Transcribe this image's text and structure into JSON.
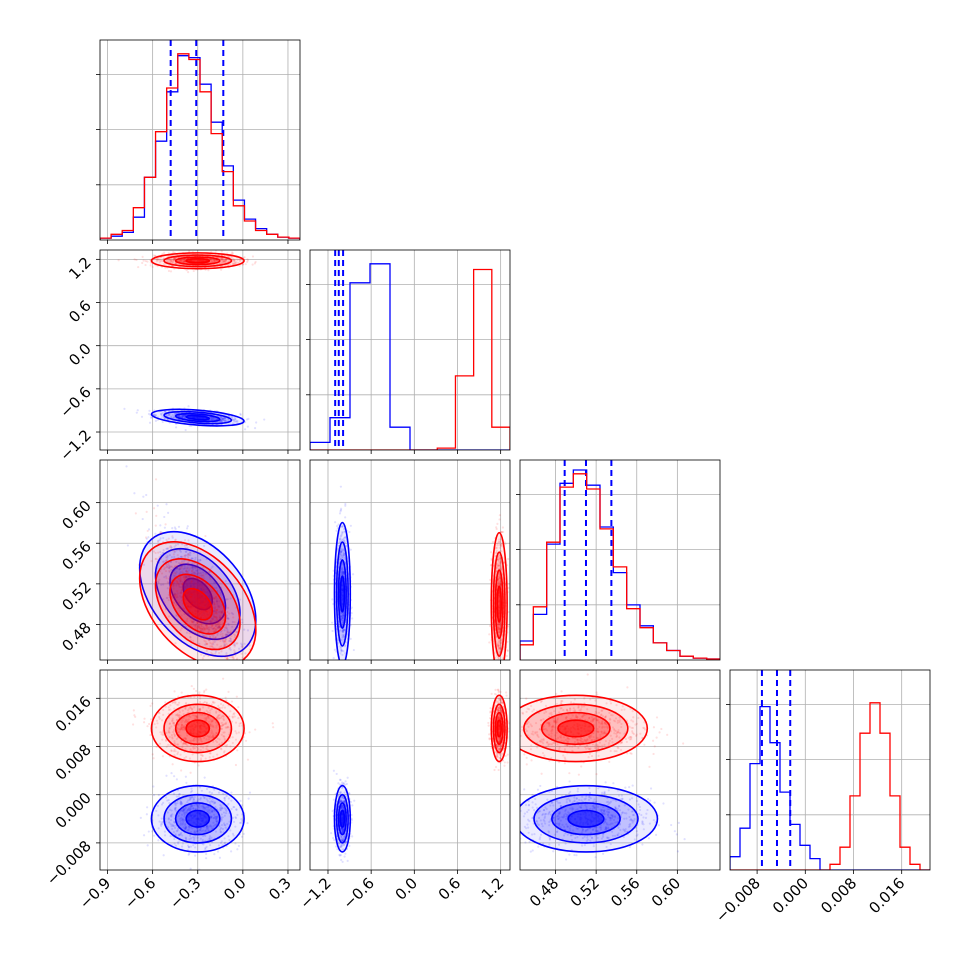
{
  "chart_data": {
    "type": "corner",
    "grid": true,
    "colors": {
      "series_a": "#0000ff",
      "series_b": "#ff0000",
      "quantile": "#0000ff"
    },
    "series": [
      {
        "color": "#0000ff",
        "means": [
          -0.3,
          -1.0,
          0.51,
          -0.004
        ],
        "stds": [
          0.14,
          0.05,
          0.032,
          0.0025
        ],
        "correlations": [
          [
            0,
            1,
            -0.4
          ],
          [
            0,
            2,
            -0.75
          ]
        ],
        "hist_1d": [
          [
            0.01,
            0.02,
            0.04,
            0.12,
            0.33,
            0.52,
            0.78,
            0.97,
            0.96,
            0.82,
            0.62,
            0.39,
            0.21,
            0.11,
            0.06,
            0.03,
            0.015,
            0.01
          ],
          [
            0.04,
            0.17,
            0.88,
            0.98,
            0.12,
            0.0,
            0.0,
            0.0,
            0.0,
            0.0
          ],
          [
            0.1,
            0.24,
            0.61,
            0.93,
            1.0,
            0.92,
            0.7,
            0.46,
            0.29,
            0.18,
            0.09,
            0.05,
            0.02,
            0.01,
            0.005
          ],
          [
            0.07,
            0.22,
            0.56,
            0.86,
            0.67,
            0.41,
            0.24,
            0.13,
            0.06,
            0.0,
            0.0,
            0.0,
            0.0,
            0.0,
            0.0,
            0.0,
            0.0,
            0.0,
            0.0,
            0.0
          ]
        ],
        "quantiles": [
          [
            -0.48,
            -0.31,
            -0.13
          ],
          [
            -1.1,
            -1.05,
            -0.99
          ],
          [
            0.489,
            0.51,
            0.535
          ],
          [
            -0.0072,
            -0.0047,
            -0.0025
          ]
        ]
      },
      {
        "color": "#ff0000",
        "means": [
          -0.3,
          1.18,
          0.5,
          0.011
        ],
        "stds": [
          0.14,
          0.05,
          0.032,
          0.0025
        ],
        "correlations": [
          [
            0,
            2,
            -0.75
          ]
        ],
        "hist_1d": [
          [
            0.01,
            0.03,
            0.05,
            0.17,
            0.33,
            0.57,
            0.8,
            0.98,
            0.95,
            0.78,
            0.56,
            0.36,
            0.18,
            0.1,
            0.05,
            0.03,
            0.015,
            0.01
          ],
          [
            0.0,
            0.0,
            0.0,
            0.0,
            0.0,
            0.0,
            0.0,
            0.01,
            0.39,
            0.95,
            0.12
          ],
          [
            0.08,
            0.28,
            0.62,
            0.91,
            0.98,
            0.9,
            0.69,
            0.49,
            0.27,
            0.17,
            0.09,
            0.05,
            0.02,
            0.01,
            0.005
          ],
          [
            0.0,
            0.0,
            0.0,
            0.0,
            0.0,
            0.0,
            0.0,
            0.0,
            0.0,
            0.0,
            0.03,
            0.12,
            0.39,
            0.72,
            0.88,
            0.72,
            0.39,
            0.12,
            0.03,
            0.0
          ]
        ],
        "quantiles": []
      }
    ],
    "axes": [
      {
        "range": [
          -0.95,
          0.38
        ],
        "ticks": [
          -0.9,
          -0.6,
          -0.3,
          0.0,
          0.3
        ],
        "tick_labels": [
          "−0.9",
          "−0.6",
          "−0.3",
          "0.0",
          "0.3"
        ]
      },
      {
        "range": [
          -1.45,
          1.33
        ],
        "ticks": [
          -1.2,
          -0.6,
          0.0,
          0.6,
          1.2
        ],
        "tick_labels": [
          "−1.2",
          "−0.6",
          "0.0",
          "0.6",
          "1.2"
        ]
      },
      {
        "range": [
          0.445,
          0.642
        ],
        "ticks": [
          0.48,
          0.52,
          0.56,
          0.6
        ],
        "tick_labels": [
          "0.48",
          "0.52",
          "0.56",
          "0.60"
        ]
      },
      {
        "range": [
          -0.0125,
          0.0207
        ],
        "ticks": [
          -0.008,
          0.0,
          0.008,
          0.016
        ],
        "tick_labels": [
          "−0.008",
          "0.000",
          "0.008",
          "0.016"
        ]
      }
    ]
  }
}
